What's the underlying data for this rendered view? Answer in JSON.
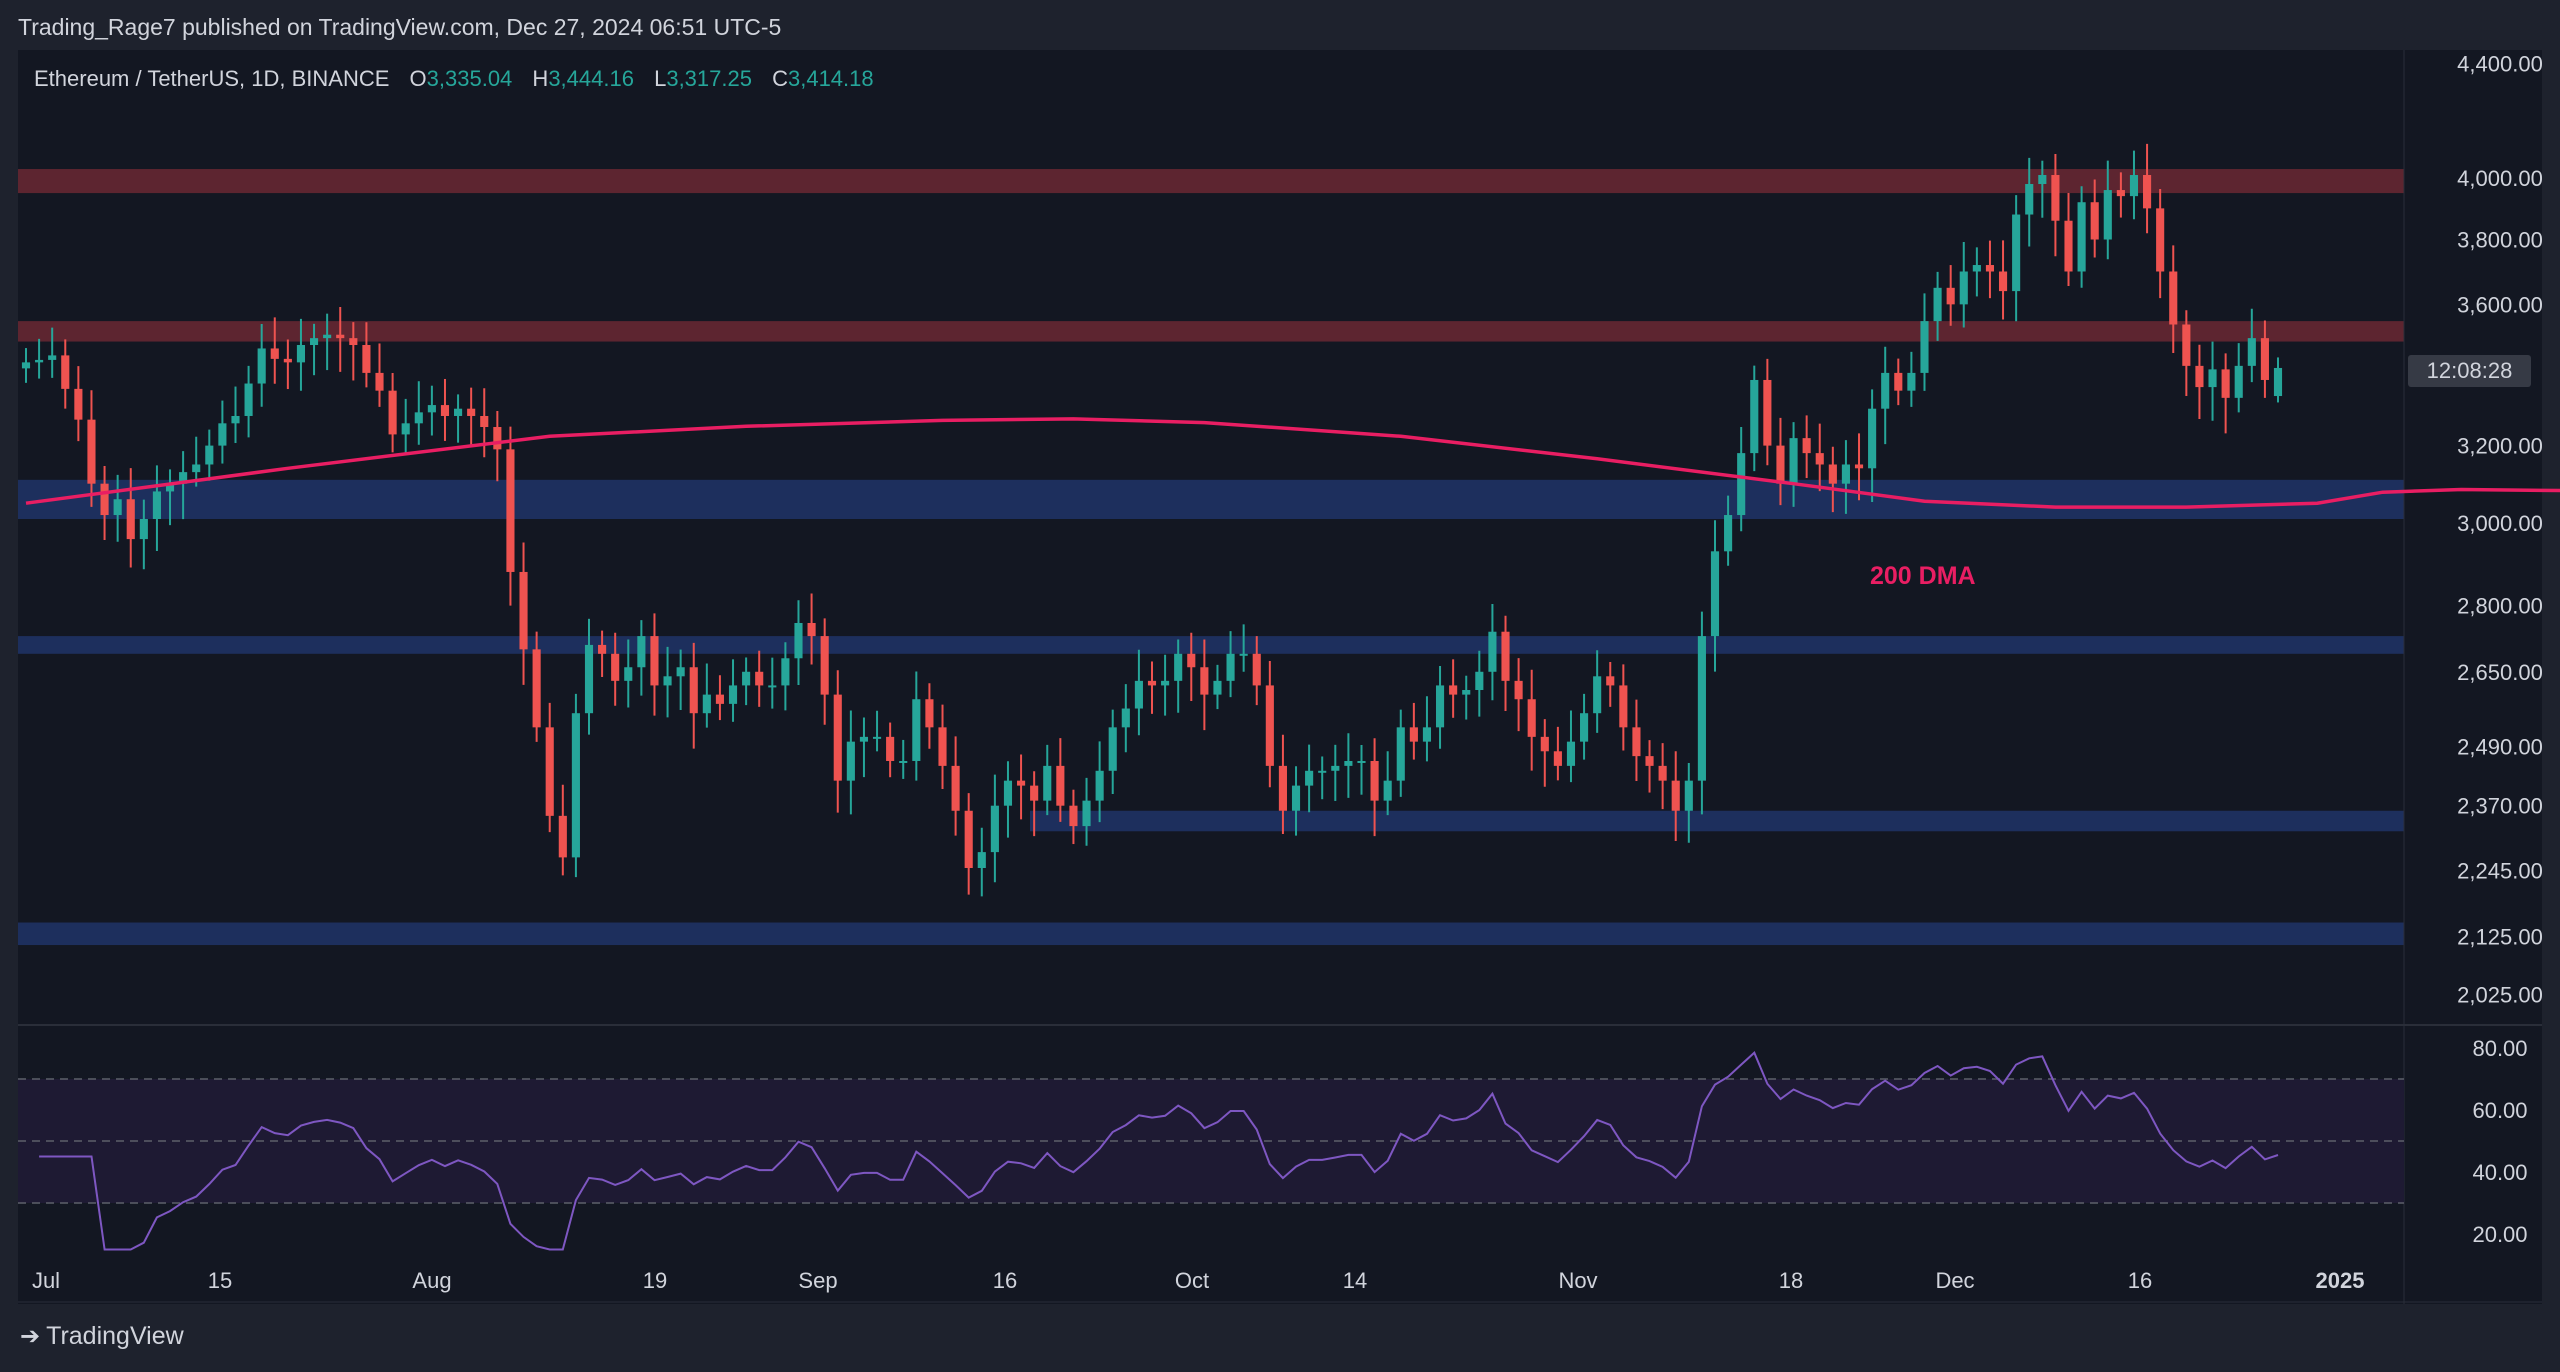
{
  "header": {
    "publish_text": "Trading_Rage7 published on TradingView.com, Dec 27, 2024 06:51 UTC-5"
  },
  "legend": {
    "symbol": "Ethereum / TetherUS, 1D, BINANCE",
    "o_label": "O",
    "o_value": "3,335.04",
    "h_label": "H",
    "h_value": "3,444.16",
    "l_label": "L",
    "l_value": "3,317.25",
    "c_label": "C",
    "c_value": "3,414.18"
  },
  "countdown": "12:08:28",
  "annotation": "200 DMA",
  "brand": "TradingView",
  "colors": {
    "up": "#26a69a",
    "down": "#ef5350",
    "ma": "#e91e63",
    "resistance_zone": "#6b2833",
    "support_zone": "#1f3264",
    "rsi_line": "#7e57c2",
    "rsi_band": "#1e1a33"
  },
  "chart_data": [
    {
      "type": "candlestick",
      "symbol": "ETHUSDT",
      "timeframe": "1D",
      "price_scale": "log",
      "y_ticks": [
        "4,400.00",
        "4,000.00",
        "3,800.00",
        "3,600.00",
        "3,200.00",
        "3,000.00",
        "2,800.00",
        "2,650.00",
        "2,490.00",
        "2,370.00",
        "2,245.00",
        "2,125.00",
        "2,025.00"
      ],
      "x_ticks": [
        "Jul",
        "15",
        "Aug",
        "19",
        "Sep",
        "16",
        "Oct",
        "14",
        "Nov",
        "18",
        "Dec",
        "16",
        "2025"
      ],
      "resistance_zones": [
        [
          3950,
          4030
        ],
        [
          3490,
          3550
        ]
      ],
      "support_zones": [
        [
          3010,
          3110
        ],
        [
          2690,
          2730
        ],
        [
          2320,
          2360
        ],
        [
          2110,
          2150
        ]
      ],
      "ma_200": [
        [
          0,
          3050
        ],
        [
          20,
          3140
        ],
        [
          40,
          3225
        ],
        [
          55,
          3252
        ],
        [
          70,
          3268
        ],
        [
          80,
          3272
        ],
        [
          90,
          3262
        ],
        [
          105,
          3225
        ],
        [
          120,
          3165
        ],
        [
          135,
          3100
        ],
        [
          145,
          3055
        ],
        [
          155,
          3040
        ],
        [
          165,
          3040
        ],
        [
          175,
          3050
        ],
        [
          180,
          3078
        ],
        [
          186,
          3085
        ],
        [
          200,
          3080
        ],
        [
          210,
          3070
        ],
        [
          215,
          3045
        ]
      ],
      "closes": [
        3430,
        3437,
        3450,
        3355,
        3270,
        3100,
        3020,
        3060,
        2960,
        3010,
        3080,
        3100,
        3130,
        3150,
        3200,
        3260,
        3280,
        3370,
        3470,
        3440,
        3430,
        3480,
        3500,
        3510,
        3500,
        3480,
        3400,
        3350,
        3230,
        3260,
        3290,
        3310,
        3280,
        3300,
        3280,
        3250,
        3190,
        2880,
        2700,
        2530,
        2350,
        2270,
        2560,
        2710,
        2690,
        2630,
        2660,
        2730,
        2620,
        2640,
        2660,
        2560,
        2600,
        2580,
        2620,
        2650,
        2620,
        2620,
        2680,
        2760,
        2730,
        2600,
        2420,
        2500,
        2510,
        2510,
        2460,
        2460,
        2590,
        2530,
        2450,
        2360,
        2250,
        2280,
        2370,
        2420,
        2410,
        2380,
        2450,
        2370,
        2330,
        2380,
        2440,
        2530,
        2570,
        2630,
        2620,
        2630,
        2690,
        2660,
        2600,
        2630,
        2690,
        2690,
        2620,
        2450,
        2360,
        2410,
        2440,
        2440,
        2450,
        2460,
        2460,
        2380,
        2420,
        2530,
        2500,
        2530,
        2620,
        2600,
        2610,
        2650,
        2740,
        2630,
        2590,
        2510,
        2480,
        2450,
        2500,
        2560,
        2640,
        2620,
        2530,
        2470,
        2450,
        2420,
        2360,
        2420,
        2730,
        2930,
        3020,
        3180,
        3380,
        3200,
        3100,
        3220,
        3180,
        3150,
        3100,
        3150,
        3140,
        3300,
        3400,
        3350,
        3400,
        3550,
        3650,
        3600,
        3700,
        3720,
        3700,
        3640,
        3880,
        3980,
        4010,
        3860,
        3700,
        3920,
        3800,
        3960,
        3940,
        4010,
        3900,
        3700,
        3540,
        3420,
        3360,
        3410,
        3330,
        3420,
        3500,
        3380,
        3414
      ]
    },
    {
      "type": "line",
      "name": "RSI",
      "y_ticks": [
        "80.00",
        "60.00",
        "40.00",
        "20.00"
      ],
      "bands": [
        30,
        50,
        70
      ]
    }
  ]
}
